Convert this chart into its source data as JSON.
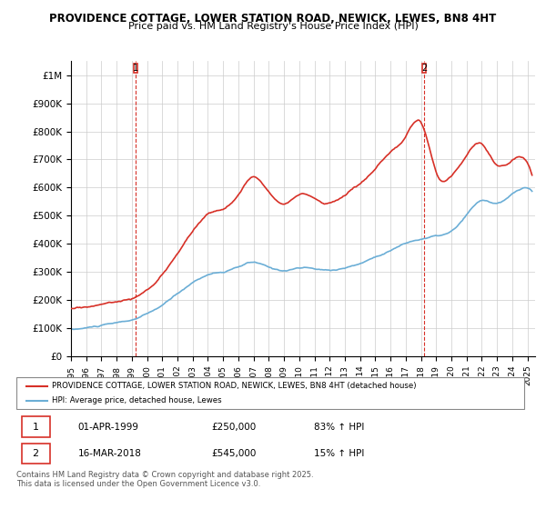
{
  "title_line1": "PROVIDENCE COTTAGE, LOWER STATION ROAD, NEWICK, LEWES, BN8 4HT",
  "title_line2": "Price paid vs. HM Land Registry's House Price Index (HPI)",
  "ylabel_top": "£1M",
  "ylim": [
    0,
    1050000
  ],
  "yticks": [
    0,
    100000,
    200000,
    300000,
    400000,
    500000,
    600000,
    700000,
    800000,
    900000,
    1000000
  ],
  "ytick_labels": [
    "£0",
    "£100K",
    "£200K",
    "£300K",
    "£400K",
    "£500K",
    "£600K",
    "£700K",
    "£800K",
    "£900K",
    "£1M"
  ],
  "xlim_start": 1995.0,
  "xlim_end": 2025.5,
  "legend_line1": "PROVIDENCE COTTAGE, LOWER STATION ROAD, NEWICK, LEWES, BN8 4HT (detached house)",
  "legend_line2": "HPI: Average price, detached house, Lewes",
  "purchase1_label": "1",
  "purchase1_date": "01-APR-1999",
  "purchase1_price": "£250,000",
  "purchase1_hpi": "83% ↑ HPI",
  "purchase2_label": "2",
  "purchase2_date": "16-MAR-2018",
  "purchase2_price": "£545,000",
  "purchase2_hpi": "15% ↑ HPI",
  "footnote": "Contains HM Land Registry data © Crown copyright and database right 2025.\nThis data is licensed under the Open Government Licence v3.0.",
  "hpi_color": "#6baed6",
  "price_color": "#d73027",
  "purchase1_x": 1999.25,
  "purchase1_y": 250000,
  "purchase2_x": 2018.2,
  "purchase2_y": 545000
}
